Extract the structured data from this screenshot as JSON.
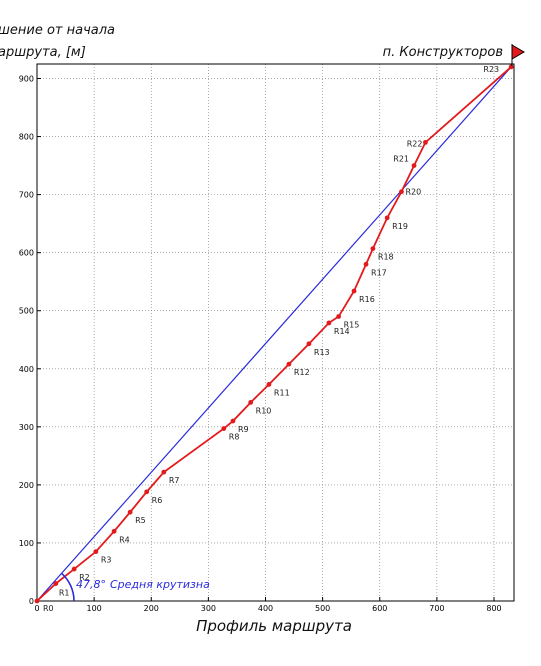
{
  "y_title_line1": "шение от начала",
  "y_title_line2": "аршрута, [м]",
  "x_title": "Профиль маршрута",
  "destination": "п. Конструкторов",
  "slope": {
    "angle": "47,8°",
    "label": "Средня крутизна"
  },
  "colors": {
    "route": "#e31a1c",
    "average": "#2a2adc",
    "flag": "#e31a1c"
  },
  "chart_data": {
    "type": "line",
    "title": "",
    "xlabel": "Профиль маршрута",
    "ylabel": "шение от начала аршрута, [м]",
    "xlim": [
      0,
      835
    ],
    "ylim": [
      0,
      925
    ],
    "grid": true,
    "x_ticks": [
      0,
      100,
      200,
      300,
      400,
      500,
      600,
      700,
      800
    ],
    "y_ticks": [
      0,
      100,
      200,
      300,
      400,
      500,
      600,
      700,
      800,
      900
    ],
    "series": [
      {
        "points": [
          {
            "label": "R0",
            "x": 0,
            "y": 0
          },
          {
            "label": "R1",
            "x": 33,
            "y": 30
          },
          {
            "label": "R2",
            "x": 65,
            "y": 55
          },
          {
            "label": "R3",
            "x": 103,
            "y": 85
          },
          {
            "label": "R4",
            "x": 135,
            "y": 120
          },
          {
            "label": "R5",
            "x": 163,
            "y": 153
          },
          {
            "label": "R6",
            "x": 192,
            "y": 188
          },
          {
            "label": "R7",
            "x": 222,
            "y": 222
          },
          {
            "label": "R8",
            "x": 327,
            "y": 297
          },
          {
            "label": "R9",
            "x": 343,
            "y": 310
          },
          {
            "label": "R10",
            "x": 374,
            "y": 342
          },
          {
            "label": "R11",
            "x": 406,
            "y": 373
          },
          {
            "label": "R12",
            "x": 441,
            "y": 408
          },
          {
            "label": "R13",
            "x": 476,
            "y": 443
          },
          {
            "label": "R14",
            "x": 511,
            "y": 479
          },
          {
            "label": "R15",
            "x": 528,
            "y": 490
          },
          {
            "label": "R16",
            "x": 555,
            "y": 534
          },
          {
            "label": "R17",
            "x": 576,
            "y": 580
          },
          {
            "label": "R18",
            "x": 588,
            "y": 607
          },
          {
            "label": "R19",
            "x": 613,
            "y": 660
          },
          {
            "label": "R20",
            "x": 638,
            "y": 705
          },
          {
            "label": "R21",
            "x": 660,
            "y": 750
          },
          {
            "label": "R22",
            "x": 680,
            "y": 790
          },
          {
            "label": "R23",
            "x": 830,
            "y": 920
          }
        ]
      }
    ],
    "average_line": {
      "x": [
        0,
        830
      ],
      "y": [
        0,
        920
      ]
    }
  }
}
